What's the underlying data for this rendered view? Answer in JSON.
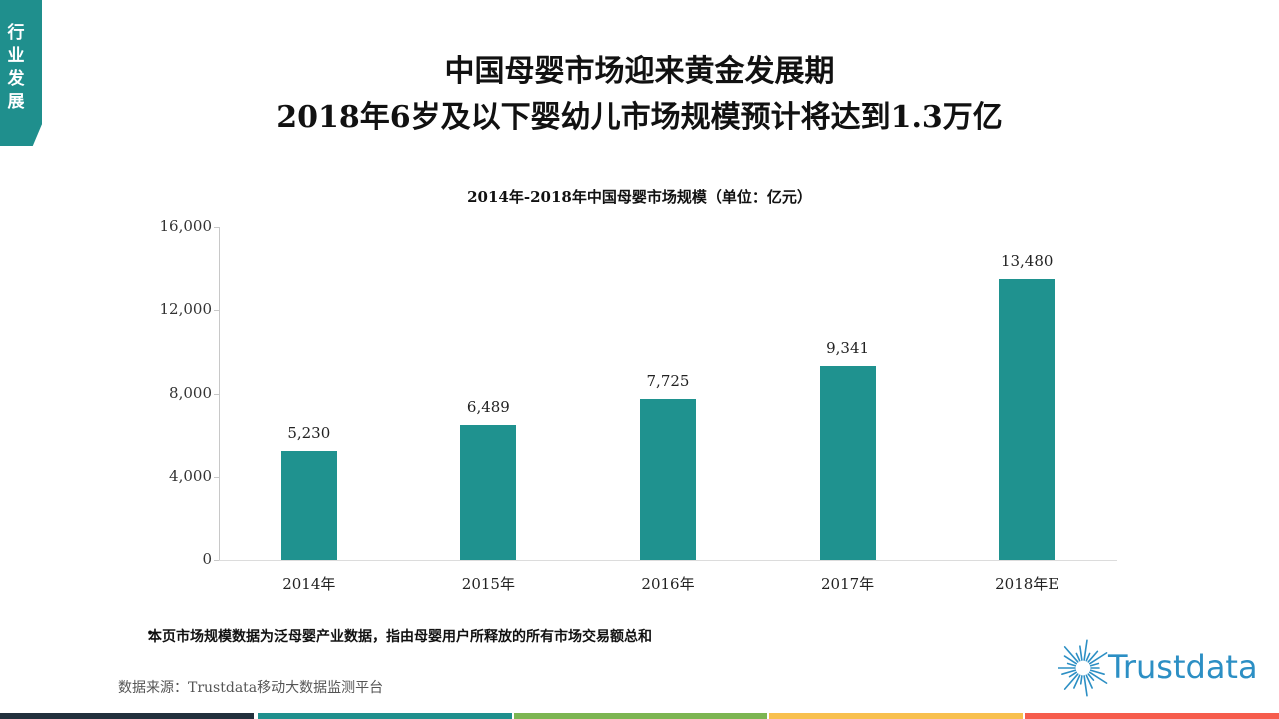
{
  "side_tab": {
    "label": "行\n业\n发\n展",
    "chars": [
      "行",
      "业",
      "发",
      "展"
    ]
  },
  "header": {
    "title_line1": "中国母婴市场迎来黄金发展期",
    "title_line2": "2018年6岁及以下婴幼儿市场规模预计将达到1.3万亿"
  },
  "chart_data": {
    "type": "bar",
    "title": "2014年-2018年中国母婴市场规模（单位：亿元）",
    "categories": [
      "2014年",
      "2015年",
      "2016年",
      "2017年",
      "2018年E"
    ],
    "values": [
      5230,
      6489,
      7725,
      9341,
      13480
    ],
    "value_labels": [
      "5,230",
      "6,489",
      "7,725",
      "9,341",
      "13,480"
    ],
    "xlabel": "",
    "ylabel": "",
    "ylim": [
      0,
      16000
    ],
    "yticks": [
      0,
      4000,
      8000,
      12000,
      16000
    ],
    "ytick_labels": [
      "0",
      "4,000",
      "8,000",
      "12,000",
      "16,000"
    ],
    "grid": false,
    "legend": null,
    "bar_color": "#1f928f"
  },
  "notes": {
    "bullet": "•",
    "text": "本页市场规模数据为泛母婴产业数据，指由母婴用户所释放的所有市场交易额总和"
  },
  "source": "数据来源：Trustdata移动大数据监测平台",
  "logo": {
    "text": "Trustdata",
    "color": "#2c8fc4"
  },
  "colors": {
    "accent": "#1f8f8d",
    "footer": [
      "#22303c",
      "#1f8f8d",
      "#7cb552",
      "#f8c04e",
      "#f65c4c"
    ]
  }
}
